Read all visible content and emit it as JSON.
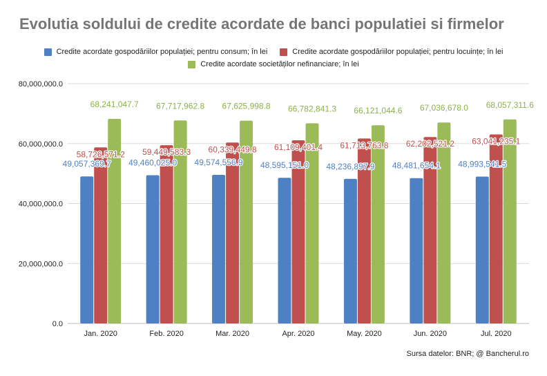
{
  "chart_data": {
    "type": "bar",
    "title": "Evolutia soldului de credite acordate de banci populatiei si firmelor",
    "xlabel": "",
    "ylabel": "",
    "categories": [
      "Jan. 2020",
      "Feb. 2020",
      "Mar. 2020",
      "Apr. 2020",
      "May. 2020",
      "Jun. 2020",
      "Jul. 2020"
    ],
    "ylim": [
      0,
      80000000
    ],
    "y_ticks": [
      0,
      20000000,
      40000000,
      60000000,
      80000000
    ],
    "y_tick_labels": [
      "0.0",
      "20,000,000.0",
      "40,000,000.0",
      "60,000,000.0",
      "80,000,000.0"
    ],
    "grid": true,
    "legend_position": "top",
    "series": [
      {
        "name": "Credite acordate gospodăriilor populației; pentru consum; în lei",
        "color": "#4e81c4",
        "label_color": "#4e81c4",
        "values": [
          49057369.7,
          49460025.0,
          49574556.9,
          48595151.0,
          48236897.9,
          48481654.1,
          48993541.5
        ],
        "labels": [
          "49,057,369.7",
          "49,460,025.0",
          "49,574,556.9",
          "48,595,151.0",
          "48,236,897.9",
          "48,481,654.1",
          "48,993,541.5"
        ]
      },
      {
        "name": "Credite acordate gospodăriilor populației; pentru locuințe; în lei",
        "color": "#c0504d",
        "label_color": "#c0504d",
        "values": [
          58726571.2,
          59449583.3,
          60339449.8,
          61109401.4,
          61713763.8,
          62202521.2,
          63041235.1
        ],
        "labels": [
          "58,726,571.2",
          "59,449,583.3",
          "60,339,449.8",
          "61,109,401.4",
          "61,713,763.8",
          "62,202,521.2",
          "63,041,235.1"
        ]
      },
      {
        "name": "Credite acordate societăților nefinanciare; în lei",
        "color": "#9bbb59",
        "label_color": "#8db049",
        "values": [
          68241047.7,
          67717962.8,
          67625998.8,
          66782841.3,
          66121044.6,
          67036678.0,
          68057311.6
        ],
        "labels": [
          "68,241,047.7",
          "67,717,962.8",
          "67,625,998.8",
          "66,782,841.3",
          "66,121,044.6",
          "67,036,678.0",
          "68,057,311.6"
        ]
      }
    ]
  },
  "source_note": "Sursa datelor: BNR; @ Bancherul.ro"
}
